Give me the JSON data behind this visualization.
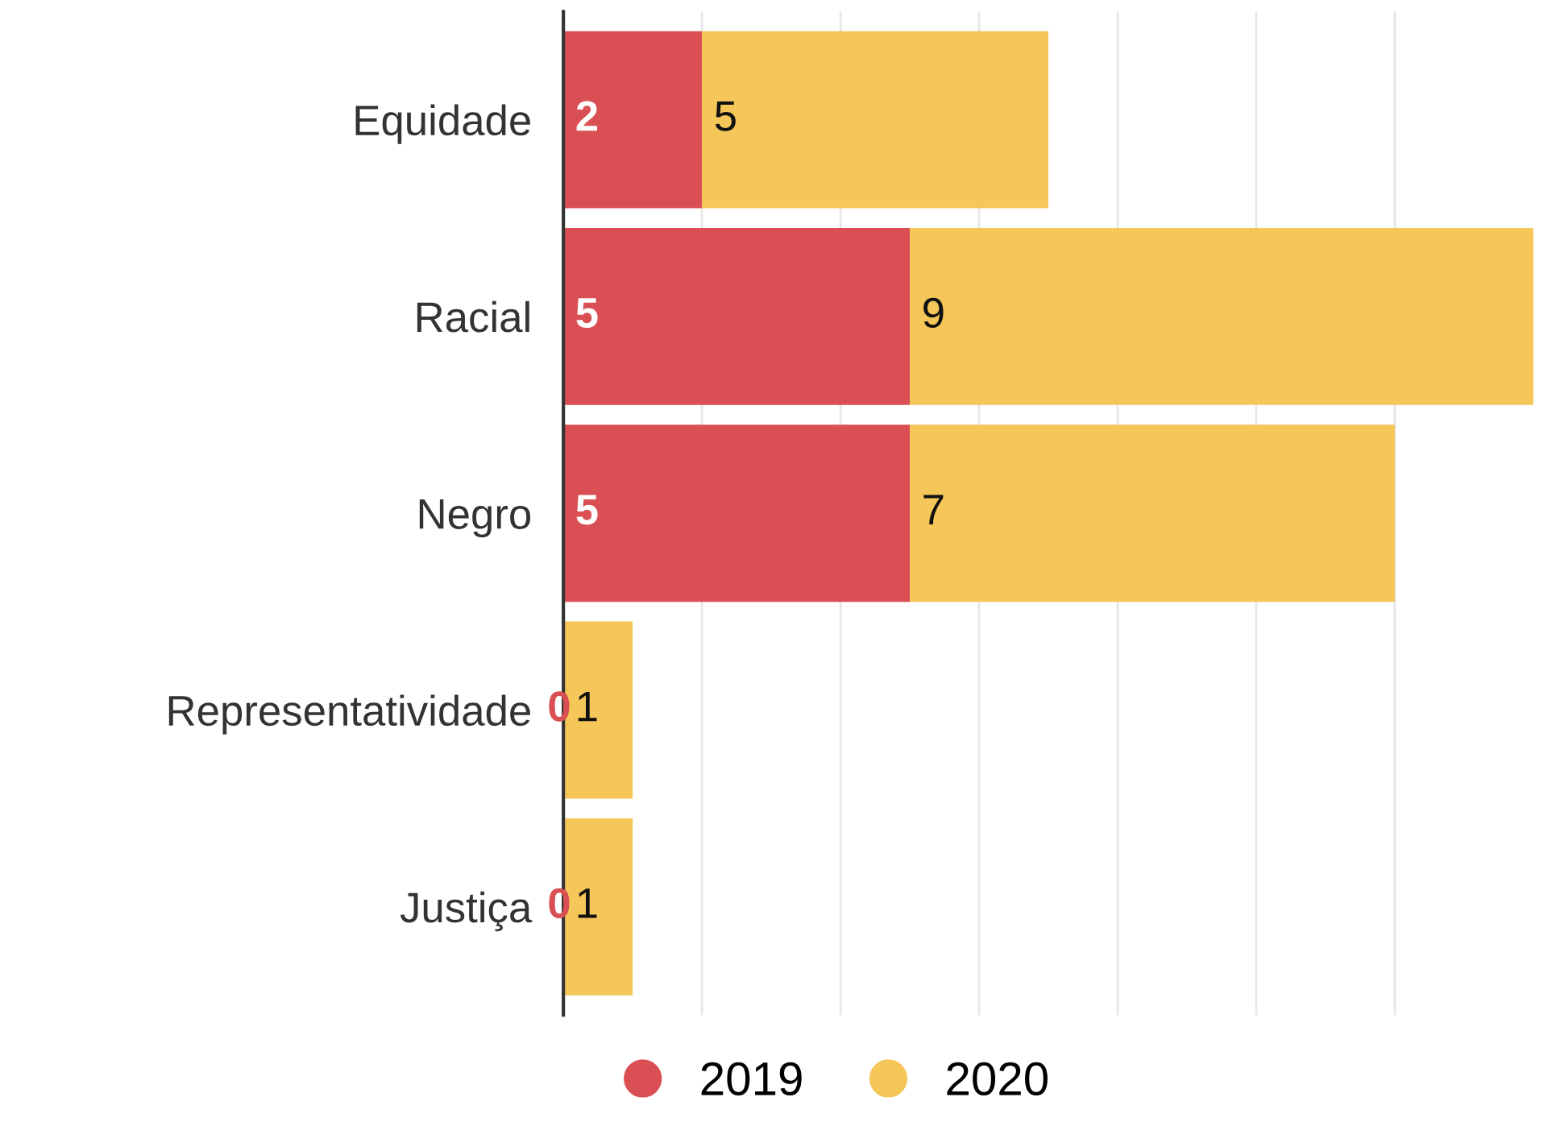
{
  "chart_data": {
    "type": "bar",
    "orientation": "horizontal",
    "stacked": true,
    "categories": [
      "Equidade",
      "Racial",
      "Negro",
      "Representatividade",
      "Justiça"
    ],
    "series": [
      {
        "name": "2019",
        "color": "#d94f53",
        "values": [
          2,
          5,
          5,
          0,
          0
        ]
      },
      {
        "name": "2020",
        "color": "#f5c658",
        "values": [
          5,
          9,
          7,
          1,
          1
        ]
      }
    ],
    "data_labels": true,
    "xlim": [
      0,
      14
    ],
    "xticks": [
      {
        "value": 0,
        "label": null
      },
      {
        "value": 2,
        "label": null
      },
      {
        "value": 4,
        "label": null
      },
      {
        "value": 6,
        "label": null
      },
      {
        "value": 8,
        "label": null
      },
      {
        "value": 10,
        "label": null
      },
      {
        "value": 12,
        "label": null
      }
    ],
    "grid": "x",
    "tick_labels": "y",
    "legend": "bottom"
  }
}
